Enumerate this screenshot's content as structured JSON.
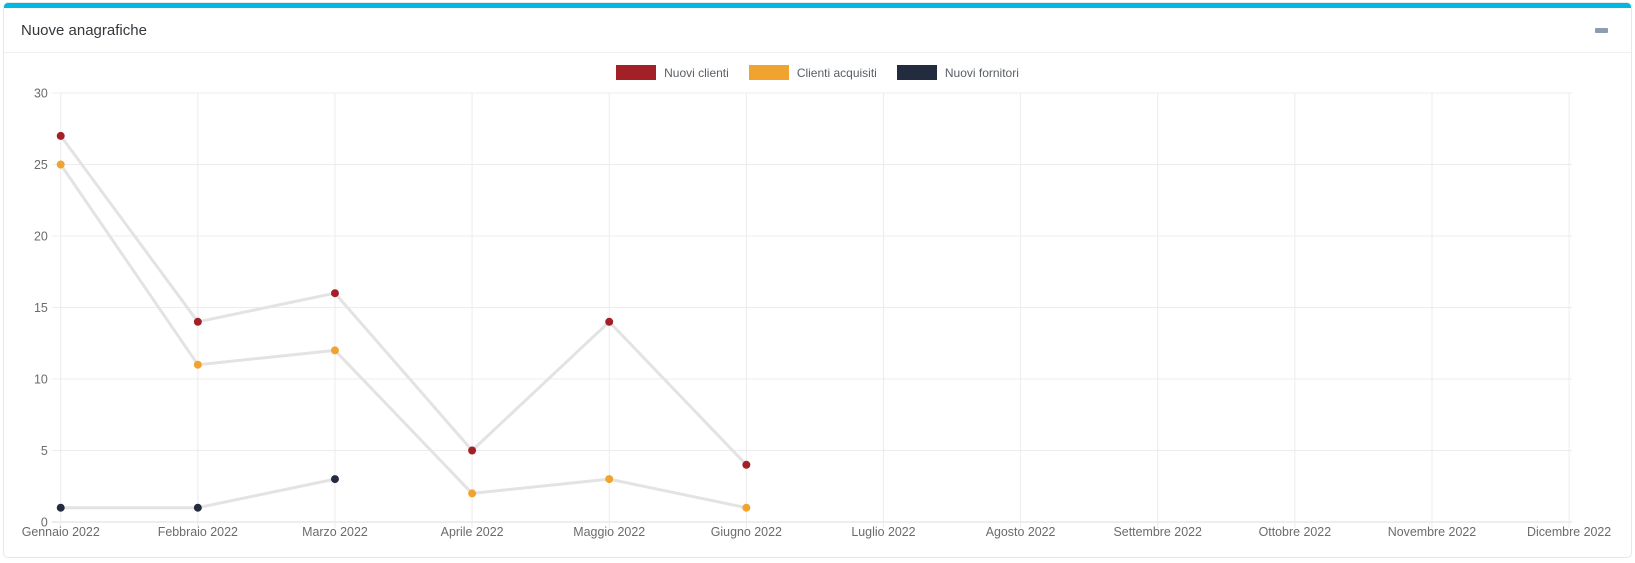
{
  "card": {
    "title": "Nuove anagrafiche",
    "accent_color": "#00b8e2",
    "collapse_icon_color": "#8d9cb0"
  },
  "chart_data": {
    "type": "line",
    "title": "Nuove anagrafiche",
    "x": [
      "Gennaio 2022",
      "Febbraio 2022",
      "Marzo 2022",
      "Aprile 2022",
      "Maggio 2022",
      "Giugno 2022",
      "Luglio 2022",
      "Agosto 2022",
      "Settembre 2022",
      "Ottobre 2022",
      "Novembre 2022",
      "Dicembre 2022"
    ],
    "series": [
      {
        "name": "Nuovi clienti",
        "color": "#a32026",
        "values": [
          27,
          14,
          16,
          5,
          14,
          4,
          null,
          null,
          null,
          null,
          null,
          null
        ]
      },
      {
        "name": "Clienti acquisiti",
        "color": "#f0a32e",
        "values": [
          25,
          11,
          12,
          2,
          3,
          1,
          null,
          null,
          null,
          null,
          null,
          null
        ]
      },
      {
        "name": "Nuovi fornitori",
        "color": "#232c3f",
        "values": [
          1,
          1,
          3,
          null,
          null,
          null,
          null,
          null,
          null,
          null,
          null,
          null
        ]
      }
    ],
    "ylim": [
      0,
      30
    ],
    "yticks": [
      0,
      5,
      10,
      15,
      20,
      25,
      30
    ],
    "grid": true,
    "legend_position": "top-center",
    "line_color": "#e3e3e3",
    "grid_color": "#ececec",
    "axis_line_color": "#dcdcdc",
    "tick_text_color": "#6b6b6b"
  }
}
